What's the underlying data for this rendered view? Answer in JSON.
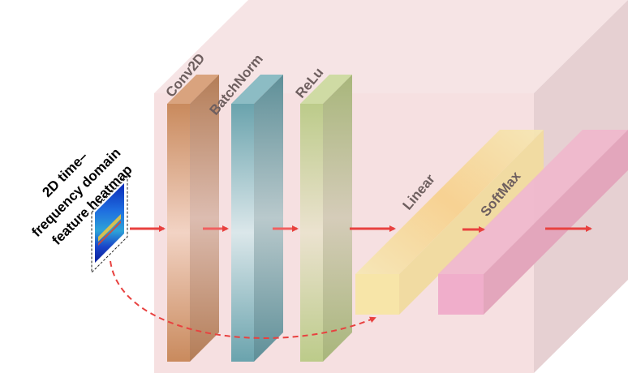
{
  "input": {
    "line1": "2D time–",
    "line2": "frequency domain",
    "line3": "feature heatmap"
  },
  "layers": {
    "conv": "Conv2D",
    "bn": "BatchNorm",
    "relu": "ReLu",
    "linear": "Linear",
    "softmax": "SoftMax"
  },
  "colors": {
    "box": "#f6dfe0",
    "conv": "#c98a5d",
    "batchnorm": "#6aa3ad",
    "relu": "#bccb8a",
    "linear": "#f7dd8e",
    "softmax": "#ec99b7",
    "arrow": "#e8413f"
  }
}
